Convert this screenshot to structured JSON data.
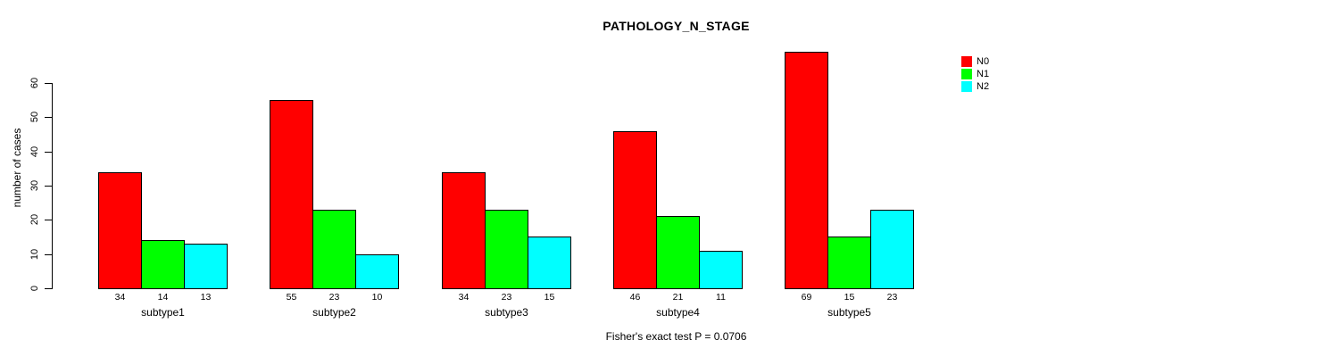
{
  "chart_data": {
    "type": "bar",
    "title": "PATHOLOGY_N_STAGE",
    "ylabel": "number of cases",
    "xlabel": "",
    "caption": "Fisher's exact test P = 0.0706",
    "categories": [
      "subtype1",
      "subtype2",
      "subtype3",
      "subtype4",
      "subtype5"
    ],
    "series": [
      {
        "name": "N0",
        "color": "#ff0000",
        "values": [
          34,
          55,
          34,
          46,
          69
        ]
      },
      {
        "name": "N1",
        "color": "#00ff00",
        "values": [
          14,
          23,
          23,
          21,
          15
        ]
      },
      {
        "name": "N2",
        "color": "#00ffff",
        "values": [
          13,
          10,
          15,
          11,
          23
        ]
      }
    ],
    "yticks": [
      0,
      10,
      20,
      30,
      40,
      50,
      60
    ],
    "ylim": [
      0,
      60
    ],
    "bar_value_labels_shown": true,
    "legend_position": "top-right",
    "grid": false,
    "background_color": "#ffffff",
    "bar_border_color": "#000000"
  }
}
